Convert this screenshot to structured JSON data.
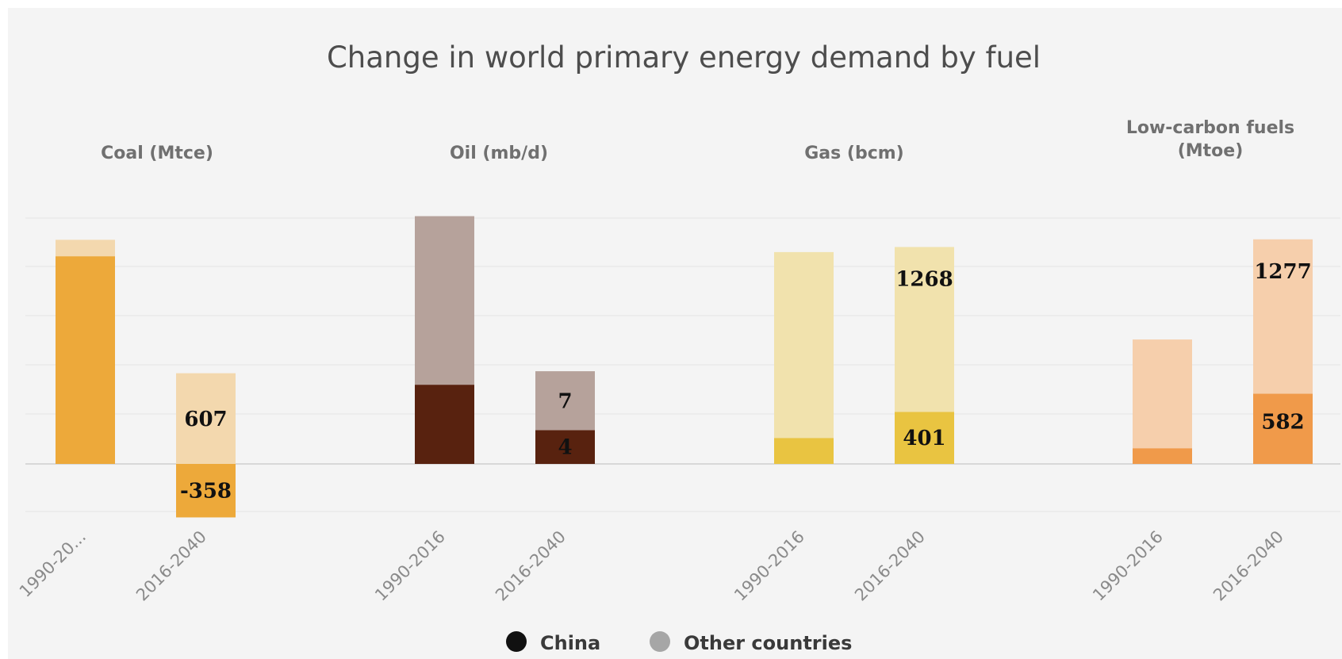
{
  "chart_data": {
    "type": "bar",
    "stacked": true,
    "title": "Change in world primary energy demand by fuel",
    "legend": {
      "position": "bottom-center",
      "items": [
        {
          "name": "China",
          "color": "#111111"
        },
        {
          "name": "Other countries",
          "color": "#a6a6a6"
        }
      ]
    },
    "grid": true,
    "panels": [
      {
        "title": "Coal (Mtce)",
        "categories": [
          "1990-20...",
          "2016-2040"
        ],
        "color_china": "#eda93a",
        "color_other": "#f3d8ae",
        "series": [
          {
            "name": "China",
            "values": [
              1390,
              -358
            ]
          },
          {
            "name": "Other countries",
            "values": [
              110,
              607
            ]
          }
        ],
        "data_labels": [
          null,
          {
            "china": "-358",
            "other": "607"
          }
        ],
        "ylim": [
          -320,
          1750
        ]
      },
      {
        "title": "Oil (mb/d)",
        "categories": [
          "1990-2016",
          "2016-2040"
        ],
        "color_china": "#58220f",
        "color_other": "#b6a29b",
        "series": [
          {
            "name": "China",
            "values": [
              9.4,
              4
            ]
          },
          {
            "name": "Other countries",
            "values": [
              20,
              7
            ]
          }
        ],
        "data_labels": [
          null,
          {
            "china": "4",
            "other": "7"
          }
        ],
        "ylim": [
          -5.7,
          31
        ]
      },
      {
        "title": "Gas (bcm)",
        "categories": [
          "1990-2016",
          "2016-2040"
        ],
        "color_china": "#e9c441",
        "color_other": "#f1e2ad",
        "series": [
          {
            "name": "China",
            "values": [
              200,
              401
            ]
          },
          {
            "name": "Other countries",
            "values": [
              1430,
              1268
            ]
          }
        ],
        "data_labels": [
          null,
          {
            "china": "401",
            "other": "1268"
          }
        ],
        "ylim": [
          -380,
          2000
        ]
      },
      {
        "title": "Low-carbon fuels (Mtoe)",
        "categories": [
          "1990-2016",
          "2016-2040"
        ],
        "color_china": "#f09a4a",
        "color_other": "#f6cfac",
        "series": [
          {
            "name": "China",
            "values": [
              130,
              582
            ]
          },
          {
            "name": "Other countries",
            "values": [
              900,
              1277
            ]
          }
        ],
        "data_labels": [
          null,
          {
            "china": "582",
            "other": "1277"
          }
        ],
        "ylim": [
          -410,
          2150
        ]
      }
    ]
  }
}
